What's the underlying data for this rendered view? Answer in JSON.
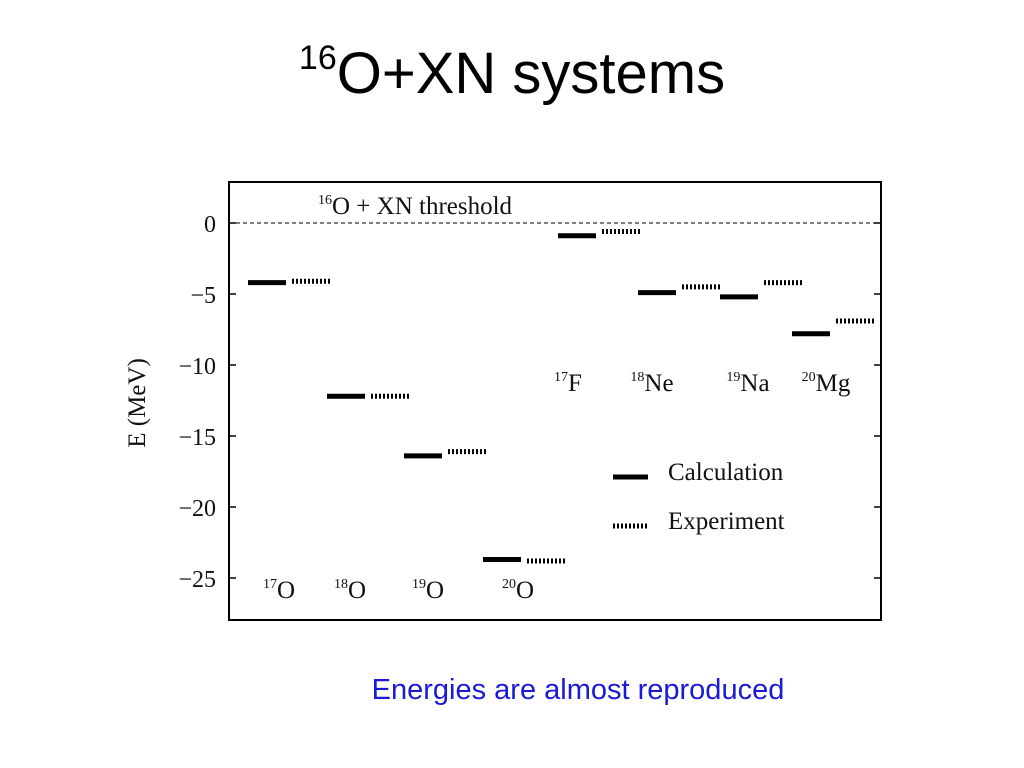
{
  "slide": {
    "title_superscript": "16",
    "title_main": "O+XN systems",
    "caption": "Energies are almost reproduced"
  },
  "chart_data": {
    "type": "bar",
    "ylabel": "E (MeV)",
    "ylim": [
      -28,
      3
    ],
    "yticks": [
      0,
      -5,
      -10,
      -15,
      -20,
      -25
    ],
    "ytick_labels": [
      "0",
      "−5",
      "−10",
      "−15",
      "−20",
      "−25"
    ],
    "threshold": {
      "value": 0,
      "label_superscript": "16",
      "label_main": "O + XN threshold"
    },
    "nuclei": [
      {
        "mass": "17",
        "symbol": "O",
        "calculation": -4.2,
        "experiment": -4.1
      },
      {
        "mass": "18",
        "symbol": "O",
        "calculation": -12.2,
        "experiment": -12.2
      },
      {
        "mass": "19",
        "symbol": "O",
        "calculation": -16.4,
        "experiment": -16.1
      },
      {
        "mass": "20",
        "symbol": "O",
        "calculation": -23.7,
        "experiment": -23.8
      },
      {
        "mass": "17",
        "symbol": "F",
        "calculation": -0.9,
        "experiment": -0.6
      },
      {
        "mass": "18",
        "symbol": "Ne",
        "calculation": -4.9,
        "experiment": -4.5
      },
      {
        "mass": "19",
        "symbol": "Na",
        "calculation": -5.2,
        "experiment": -4.2
      },
      {
        "mass": "20",
        "symbol": "Mg",
        "calculation": -7.8,
        "experiment": -6.9
      }
    ],
    "series": [
      {
        "name": "Calculation",
        "style": "solid"
      },
      {
        "name": "Experiment",
        "style": "dotted"
      }
    ],
    "legend_position": "lower-right",
    "colors": {
      "levels": "#000000",
      "caption": "#1a1ad6"
    }
  }
}
